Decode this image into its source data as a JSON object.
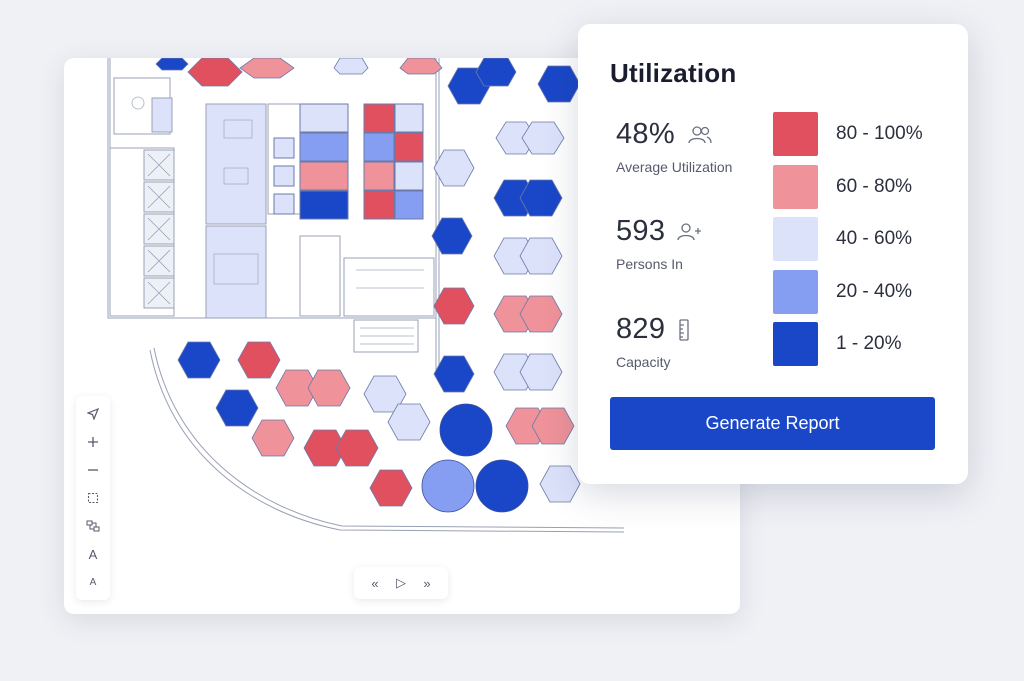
{
  "utilization_card": {
    "title": "Utilization",
    "stats": [
      {
        "value": "48%",
        "label": "Average Utilization",
        "icon": "people-icon"
      },
      {
        "value": "593",
        "label": "Persons In",
        "icon": "person-add-icon"
      },
      {
        "value": "829",
        "label": "Capacity",
        "icon": "ruler-icon"
      }
    ],
    "legend": [
      {
        "label": "80 - 100%",
        "color": "#e0505f"
      },
      {
        "label": "60 - 80%",
        "color": "#ef929a"
      },
      {
        "label": "40 - 60%",
        "color": "#dde2fb"
      },
      {
        "label": "20 - 40%",
        "color": "#869ef2"
      },
      {
        "label": "1 - 20%",
        "color": "#1a47c8"
      }
    ],
    "button_label": "Generate Report"
  },
  "toolbar": {
    "tools": [
      "navigate-icon",
      "zoom-in-icon",
      "zoom-out-icon",
      "select-area-icon",
      "group-icon",
      "text-large-icon",
      "text-small-icon"
    ],
    "text_large": "A",
    "text_small": "A"
  },
  "playback": {
    "rewind": "«",
    "play": "▷",
    "forward": "»"
  },
  "colors": {
    "high": "#e0505f",
    "medium_high": "#ef929a",
    "medium": "#dde2fb",
    "medium_low": "#869ef2",
    "low": "#1a47c8",
    "accent": "#1a47c8"
  }
}
